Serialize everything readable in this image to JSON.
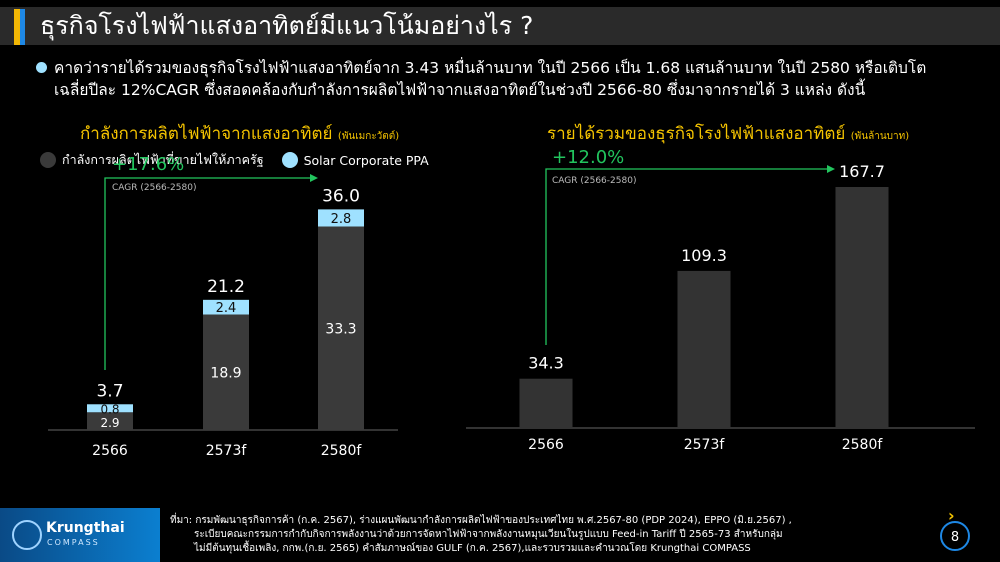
{
  "title": "ธุรกิจโรงไฟฟ้าแสงอาทิตย์มีแนวโน้มอย่างไร ?",
  "summary": {
    "line1": "คาดว่ารายได้รวมของธุรกิจโรงไฟฟ้าแสงอาทิตย์จาก 3.43 หมื่นล้านบาท ในปี 2566 เป็น 1.68 แสนล้านบาท ในปี 2580 หรือเติบโต",
    "line2": "เฉลี่ยปีละ 12%CAGR  ซึ่งสอดคล้องกับกำลังการผลิตไฟฟ้าจากแสงอาทิตย์ในช่วงปี 2566-80 ซึ่งมาจากรายได้ 3 แหล่ง ดังนี้"
  },
  "colors": {
    "gov_bar": "#3a3a3a",
    "ppa_bar": "#9fe1ff",
    "revenue_bar": "#333333",
    "growth_arrow": "#22c55e",
    "title_yellow": "#f5c400"
  },
  "chart_data": [
    {
      "type": "bar",
      "stacked": true,
      "title": "กำลังการผลิตไฟฟ้าจากแสงอาทิตย์",
      "unit": "(พันเมกะวัตต์)",
      "categories": [
        "2566",
        "2573f",
        "2580f"
      ],
      "series": [
        {
          "name": "กำลังการผลิตไฟฟ้าที่ขายไฟให้ภาครัฐ",
          "values": [
            2.9,
            18.9,
            33.3
          ]
        },
        {
          "name": "Solar Corporate PPA",
          "values": [
            0.8,
            2.4,
            2.8
          ]
        }
      ],
      "totals": [
        3.7,
        21.2,
        36.0
      ],
      "total_labels": [
        "3.7",
        "21.2",
        "36.0"
      ],
      "segment_labels": [
        [
          "2.9",
          "0.8"
        ],
        [
          "18.9",
          "2.4"
        ],
        [
          "33.3",
          "2.8"
        ]
      ],
      "growth_label": "+17.6%",
      "growth_note": "CAGR (2566-2580)",
      "ylim": [
        0,
        36
      ],
      "legend_position": "top-left"
    },
    {
      "type": "bar",
      "title": "รายได้รวมของธุรกิจโรงไฟฟ้าแสงอาทิตย์",
      "unit": "(พันล้านบาท)",
      "categories": [
        "2566",
        "2573f",
        "2580f"
      ],
      "values": [
        34.3,
        109.3,
        167.7
      ],
      "value_labels": [
        "34.3",
        "109.3",
        "167.7"
      ],
      "growth_label": "+12.0%",
      "growth_note": "CAGR (2566-2580)",
      "ylim": [
        0,
        167.7
      ]
    }
  ],
  "footer": {
    "brand_name": "Krungthai",
    "brand_sub": "COMPASS",
    "source_line1": "ที่มา: กรมพัฒนาธุรกิจการค้า (ก.ค. 2567), ร่างแผนพัฒนากำลังการผลิตไฟฟ้าของประเทศไทย พ.ศ.2567-80 (PDP 2024), EPPO (มิ.ย.2567) ,",
    "source_line2": "ระเบียบคณะกรรมการกำกับกิจการพลังงานว่าด้วยการจัดหาไฟฟ้าจากพลังงานหมุนเวียนในรูปแบบ Feed-in Tariff ปี 2565-73 สำหรับกลุ่ม",
    "source_line3": "ไม่มีต้นทุนเชื้อเพลิง, กกพ.(ก.ย. 2565) คำสัมภาษณ์ของ GULF (ก.ค. 2567),และรวบรวมและคำนวณโดย Krungthai COMPASS",
    "page_number": "8",
    "page_chevron": "›"
  }
}
